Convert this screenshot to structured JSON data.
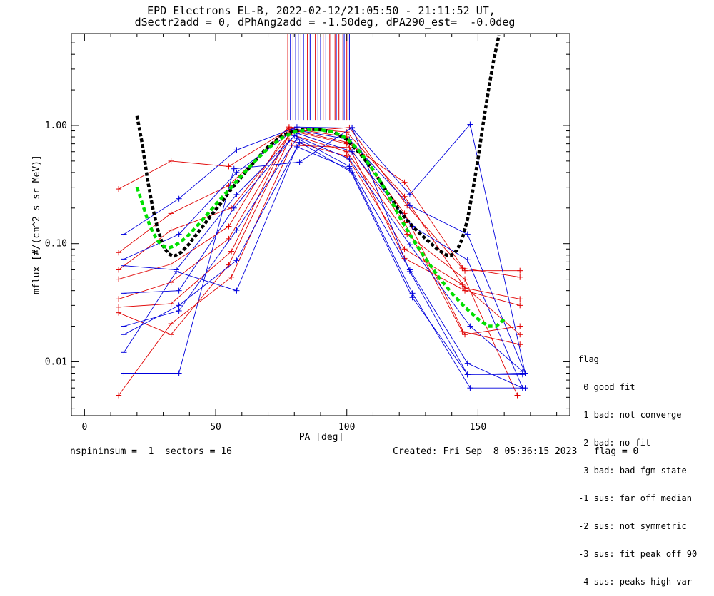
{
  "header": {
    "title_line1": "EPD Electrons EL-B, 2022-02-12/21:05:50 - 21:11:52 UT,",
    "title_line2": "dSectr2add = 0, dPhAng2add = -1.50deg, dPA290_est=  -0.0deg"
  },
  "footer": {
    "left": "nspininsum =  1  sectors = 16",
    "right": "Created: Fri Sep  8 05:36:15 2023   flag = 0"
  },
  "legend": {
    "title": "flag",
    "items": [
      " 0 good fit",
      " 1 bad: not converge",
      " 2 bad: no fit",
      " 3 bad: bad fgm state",
      "-1 sus: far off median",
      "-2 sus: not symmetric",
      "-3 sus: fit peak off 90",
      "-4 sus: peaks high var"
    ]
  },
  "colors": {
    "red": "#e00000",
    "blue": "#0000dd",
    "black": "#000000",
    "green": "#00e000"
  },
  "chart_data": {
    "type": "scatter",
    "xlabel": "PA [deg]",
    "ylabel": "mflux [#/(cm^2 s sr MeV)]",
    "xlim": [
      -5,
      185
    ],
    "ylim": [
      0.0035,
      6.0
    ],
    "yscale": "log",
    "x_ticks": [
      0,
      50,
      100,
      150
    ],
    "y_ticks": [
      0.01,
      0.1,
      1.0
    ],
    "y_tick_labels": [
      "0.01",
      "0.10",
      "1.00"
    ],
    "vertical_lines_red": [
      77.5,
      79.5,
      82.5,
      85,
      88,
      91,
      93.5,
      95.5,
      97,
      98.5,
      100
    ],
    "vertical_lines_blue": [
      78.5,
      80.5,
      81.5,
      83.5,
      86,
      89,
      90,
      92,
      96,
      99,
      101
    ],
    "series": [
      {
        "color": "red",
        "x": [
          13,
          33,
          55,
          78,
          100,
          122,
          145,
          166
        ],
        "y": [
          0.29,
          0.5,
          0.45,
          0.93,
          0.72,
          0.33,
          0.059,
          0.059
        ]
      },
      {
        "color": "red",
        "x": [
          13,
          33,
          55,
          78,
          100,
          122,
          145,
          166
        ],
        "y": [
          0.084,
          0.18,
          0.31,
          0.97,
          0.88,
          0.25,
          0.042,
          0.034
        ]
      },
      {
        "color": "red",
        "x": [
          13,
          33,
          56,
          79,
          101,
          123,
          144,
          166
        ],
        "y": [
          0.06,
          0.13,
          0.2,
          0.88,
          0.96,
          0.21,
          0.062,
          0.052
        ]
      },
      {
        "color": "red",
        "x": [
          13,
          33,
          55,
          78,
          100,
          122,
          145,
          166
        ],
        "y": [
          0.05,
          0.067,
          0.14,
          0.95,
          0.8,
          0.18,
          0.017,
          0.02
        ]
      },
      {
        "color": "red",
        "x": [
          13,
          33,
          55,
          79,
          100,
          122,
          144,
          166
        ],
        "y": [
          0.034,
          0.047,
          0.11,
          0.9,
          0.7,
          0.15,
          0.018,
          0.014
        ]
      },
      {
        "color": "red",
        "x": [
          13,
          33,
          56,
          78,
          100,
          123,
          145,
          165
        ],
        "y": [
          0.029,
          0.031,
          0.086,
          0.85,
          0.6,
          0.12,
          0.05,
          0.0052
        ]
      },
      {
        "color": "red",
        "x": [
          13,
          33,
          55,
          78,
          100,
          122,
          144,
          166
        ],
        "y": [
          0.026,
          0.017,
          0.066,
          0.75,
          0.55,
          0.09,
          0.045,
          0.017
        ]
      },
      {
        "color": "red",
        "x": [
          13,
          33,
          56,
          79,
          101,
          122,
          145,
          166
        ],
        "y": [
          0.0052,
          0.021,
          0.052,
          0.68,
          0.65,
          0.075,
          0.04,
          0.03
        ]
      },
      {
        "color": "blue",
        "x": [
          15,
          36,
          58,
          81,
          102,
          124,
          147,
          168
        ],
        "y": [
          0.12,
          0.24,
          0.62,
          0.97,
          0.95,
          0.26,
          1.02,
          0.008
        ]
      },
      {
        "color": "blue",
        "x": [
          15,
          36,
          58,
          80,
          101,
          124,
          146,
          168
        ],
        "y": [
          0.074,
          0.12,
          0.4,
          0.92,
          0.76,
          0.21,
          0.12,
          0.008
        ]
      },
      {
        "color": "blue",
        "x": [
          15,
          35,
          58,
          81,
          102,
          125,
          146,
          167
        ],
        "y": [
          0.065,
          0.06,
          0.26,
          0.86,
          0.6,
          0.14,
          0.073,
          0.006
        ]
      },
      {
        "color": "blue",
        "x": [
          15,
          36,
          57,
          80,
          101,
          124,
          147,
          167
        ],
        "y": [
          0.038,
          0.04,
          0.2,
          0.82,
          0.52,
          0.098,
          0.02,
          0.0083
        ]
      },
      {
        "color": "blue",
        "x": [
          15,
          36,
          58,
          81,
          101,
          124,
          146,
          167
        ],
        "y": [
          0.02,
          0.027,
          0.13,
          0.78,
          0.45,
          0.06,
          0.0097,
          0.006
        ]
      },
      {
        "color": "blue",
        "x": [
          15,
          36,
          58,
          82,
          102,
          125,
          147,
          168
        ],
        "y": [
          0.017,
          0.03,
          0.072,
          0.72,
          0.4,
          0.038,
          0.006,
          0.006
        ]
      },
      {
        "color": "blue",
        "x": [
          15,
          35,
          58,
          81,
          101,
          125,
          146,
          167
        ],
        "y": [
          0.012,
          0.058,
          0.04,
          0.66,
          0.43,
          0.035,
          0.0078,
          0.0078
        ]
      },
      {
        "color": "blue",
        "x": [
          15,
          36,
          57,
          82,
          102,
          124,
          146,
          167
        ],
        "y": [
          0.008,
          0.008,
          0.43,
          0.49,
          0.96,
          0.058,
          0.0078,
          0.008
        ]
      }
    ],
    "fit_black": {
      "x": [
        20,
        22,
        24,
        26,
        28,
        30,
        32,
        34,
        37,
        40,
        44,
        48,
        52,
        56,
        60,
        65,
        70,
        75,
        80,
        85,
        90,
        95,
        100,
        105,
        110,
        115,
        120,
        125,
        130,
        135,
        138,
        140,
        142,
        144,
        146,
        148,
        150,
        152,
        154,
        156,
        158
      ],
      "y": [
        1.2,
        0.7,
        0.35,
        0.2,
        0.13,
        0.095,
        0.082,
        0.078,
        0.085,
        0.1,
        0.13,
        0.17,
        0.22,
        0.29,
        0.37,
        0.5,
        0.66,
        0.81,
        0.9,
        0.93,
        0.92,
        0.88,
        0.76,
        0.58,
        0.42,
        0.28,
        0.19,
        0.14,
        0.11,
        0.088,
        0.08,
        0.08,
        0.088,
        0.11,
        0.16,
        0.28,
        0.52,
        1.05,
        2.0,
        3.6,
        5.8
      ]
    },
    "fit_green": {
      "x": [
        20,
        22,
        24,
        26,
        28,
        30,
        32,
        34,
        37,
        40,
        44,
        48,
        52,
        56,
        60,
        65,
        70,
        75,
        80,
        85,
        90,
        95,
        100,
        105,
        110,
        115,
        120,
        125,
        130,
        135,
        140,
        145,
        150,
        154,
        157,
        160
      ],
      "y": [
        0.3,
        0.22,
        0.16,
        0.125,
        0.105,
        0.095,
        0.092,
        0.095,
        0.105,
        0.12,
        0.15,
        0.19,
        0.24,
        0.3,
        0.38,
        0.5,
        0.64,
        0.78,
        0.88,
        0.92,
        0.92,
        0.88,
        0.78,
        0.6,
        0.42,
        0.28,
        0.17,
        0.11,
        0.075,
        0.052,
        0.038,
        0.029,
        0.023,
        0.02,
        0.02,
        0.023
      ]
    }
  }
}
